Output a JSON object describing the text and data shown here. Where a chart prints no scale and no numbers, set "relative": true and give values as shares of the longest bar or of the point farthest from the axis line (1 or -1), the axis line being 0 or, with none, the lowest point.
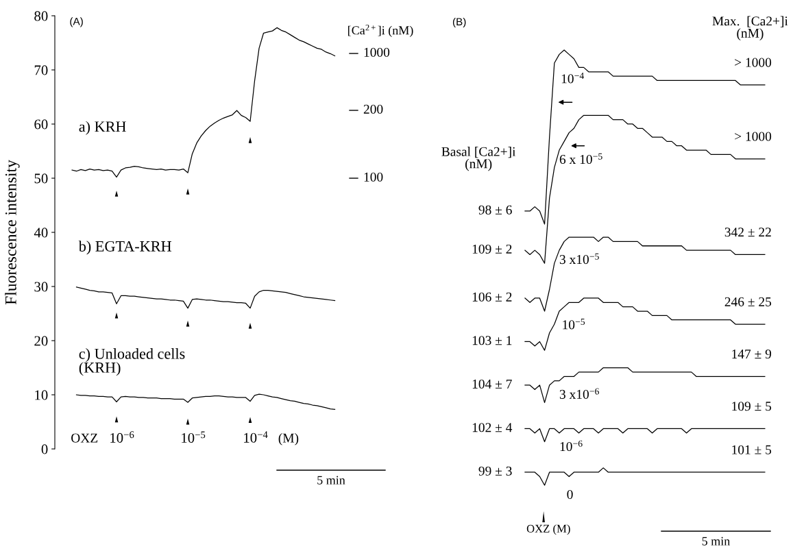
{
  "chart_data": [
    {
      "type": "line",
      "title": "(A)",
      "ylabel": "Fluorescence intensity",
      "categories": [
        null,
        null,
        null,
        null,
        null,
        null,
        null,
        null,
        null,
        null,
        null,
        null,
        null,
        null,
        null,
        null,
        null,
        null,
        null,
        null,
        null,
        null,
        null,
        null,
        null,
        null,
        null,
        null,
        null,
        null,
        null,
        null,
        null,
        null,
        null,
        null,
        null,
        null,
        null,
        null,
        null,
        null,
        null,
        null,
        null,
        null,
        null,
        null,
        null,
        null,
        null,
        null,
        null,
        null,
        null,
        null,
        null,
        null,
        null,
        null
      ],
      "ylim": [
        0,
        80
      ],
      "yticks": [
        0,
        10,
        20,
        30,
        40,
        50,
        60,
        70,
        80
      ],
      "tick_labels": "y",
      "marker": "none",
      "line_style": "solid",
      "series": [
        {
          "name": "a) KRH",
          "color": "#000000",
          "values": [
            51.5,
            51.3,
            51.6,
            51.4,
            51.7,
            51.5,
            51.6,
            51.4,
            51.5,
            51.3,
            50.2,
            51.5,
            51.9,
            52.0,
            52.2,
            52.1,
            51.9,
            51.8,
            51.7,
            51.6,
            51.7,
            51.5,
            51.6,
            51.6,
            51.5,
            51.7,
            51.0,
            54.5,
            56.5,
            57.8,
            58.8,
            59.6,
            60.2,
            60.7,
            61.1,
            61.4,
            61.7,
            62.5,
            61.6,
            61.2,
            60.5,
            68,
            74,
            76.8,
            77,
            77.2,
            77.8,
            77.3,
            77,
            76.5,
            76,
            75.5,
            75.2,
            74.8,
            74.4,
            74,
            73.8,
            73.3,
            73,
            72.6
          ]
        },
        {
          "name": "b) EGTA-KRH",
          "color": "#000000",
          "values": [
            null,
            29.9,
            29.7,
            29.5,
            29.3,
            29.2,
            29.0,
            29.0,
            28.9,
            28.8,
            26.8,
            28.3,
            28.3,
            28.2,
            28.2,
            28.1,
            28.0,
            27.9,
            27.8,
            27.7,
            27.7,
            27.6,
            27.5,
            27.5,
            27.4,
            27.3,
            26.0,
            27.6,
            27.7,
            27.6,
            27.5,
            27.5,
            27.4,
            27.3,
            27.2,
            27.2,
            27.1,
            27.0,
            27.0,
            26.9,
            26.0,
            28.2,
            29.0,
            29.3,
            29.3,
            29.2,
            29.1,
            29.0,
            28.9,
            28.7,
            28.5,
            28.3,
            28.1,
            28.0,
            27.9,
            27.8,
            27.7,
            27.6,
            27.5,
            27.4
          ]
        },
        {
          "name": "c) Unloaded cells\n(KRH)",
          "color": "#000000",
          "values": [
            null,
            10.0,
            9.9,
            9.9,
            9.8,
            9.8,
            9.7,
            9.7,
            9.6,
            9.6,
            8.7,
            9.6,
            9.7,
            9.6,
            9.6,
            9.5,
            9.5,
            9.4,
            9.4,
            9.4,
            9.3,
            9.3,
            9.3,
            9.2,
            9.2,
            9.2,
            8.6,
            9.4,
            9.5,
            9.6,
            9.7,
            9.7,
            9.8,
            9.8,
            9.7,
            9.6,
            9.6,
            9.5,
            9.5,
            9.5,
            8.8,
            9.9,
            10.1,
            10.0,
            9.8,
            9.6,
            9.5,
            9.3,
            9.1,
            8.9,
            8.8,
            8.6,
            8.4,
            8.3,
            8.1,
            8.0,
            7.8,
            7.6,
            7.4,
            7.3
          ]
        }
      ],
      "annotations": [
        "OXZ",
        "10$^{−6}$",
        "10$^{−5}$",
        "10$^{−4}$",
        "(M)",
        "5 min",
        "[Ca$^{2+}$]i (nM)",
        "1000",
        "200",
        "100"
      ]
    },
    {
      "type": "line",
      "title": "(B)",
      "relative": true,
      "tick_labels": false,
      "marker": "none",
      "line_style": "solid",
      "categories": [
        null,
        null,
        null,
        null,
        null,
        null,
        null,
        null,
        null,
        null,
        null,
        null,
        null,
        null,
        null,
        null,
        null,
        null,
        null,
        null,
        null,
        null,
        null,
        null,
        null,
        null,
        null,
        null,
        null,
        null,
        null,
        null,
        null,
        null,
        null,
        null,
        null,
        null,
        null,
        null,
        null,
        null,
        null,
        null,
        null,
        null,
        null,
        null,
        null,
        null
      ],
      "series": [
        {
          "name": "10$^{−4}$",
          "color": "#000000",
          "values": [
            0.63,
            0.63,
            0.64,
            0.63,
            0.6,
            0.8,
            0.97,
            0.99,
            1.0,
            0.99,
            0.98,
            0.96,
            0.96,
            0.95,
            0.95,
            0.95,
            0.95,
            0.95,
            0.94,
            0.94,
            0.94,
            0.94,
            0.94,
            0.94,
            0.94,
            0.94,
            0.94,
            0.93,
            0.93,
            0.93,
            0.93,
            0.93,
            0.93,
            0.93,
            0.93,
            0.93,
            0.93,
            0.93,
            0.93,
            0.93,
            0.93,
            0.93,
            0.93,
            0.93,
            0.92,
            0.92,
            0.92,
            0.92,
            0.92,
            0.92
          ]
        },
        {
          "name": "6 x 10$^{−5}$",
          "color": "#000000",
          "values": [
            0.54,
            0.53,
            0.54,
            0.53,
            0.51,
            0.66,
            0.73,
            0.77,
            0.79,
            0.81,
            0.82,
            0.84,
            0.85,
            0.85,
            0.85,
            0.85,
            0.85,
            0.85,
            0.84,
            0.84,
            0.84,
            0.83,
            0.83,
            0.82,
            0.82,
            0.81,
            0.8,
            0.8,
            0.8,
            0.79,
            0.79,
            0.78,
            0.78,
            0.77,
            0.77,
            0.77,
            0.77,
            0.77,
            0.76,
            0.76,
            0.76,
            0.76,
            0.76,
            0.75,
            0.75,
            0.75,
            0.75,
            0.75,
            0.75,
            0.75
          ]
        },
        {
          "name": "3 x10$^{−5}$",
          "color": "#000000",
          "values": [
            0.43,
            0.42,
            0.43,
            0.43,
            0.4,
            0.45,
            0.51,
            0.54,
            0.56,
            0.57,
            0.57,
            0.57,
            0.57,
            0.57,
            0.57,
            0.56,
            0.57,
            0.57,
            0.56,
            0.56,
            0.56,
            0.56,
            0.56,
            0.56,
            0.55,
            0.55,
            0.55,
            0.55,
            0.55,
            0.55,
            0.55,
            0.55,
            0.55,
            0.54,
            0.54,
            0.54,
            0.54,
            0.54,
            0.54,
            0.54,
            0.54,
            0.54,
            0.54,
            0.53,
            0.53,
            0.53,
            0.53,
            0.53,
            0.53,
            0.53
          ]
        },
        {
          "name": "10$^{−5}$",
          "color": "#000000",
          "values": [
            0.33,
            0.33,
            0.32,
            0.33,
            0.31,
            0.35,
            0.37,
            0.4,
            0.41,
            0.42,
            0.42,
            0.42,
            0.43,
            0.43,
            0.43,
            0.43,
            0.42,
            0.42,
            0.42,
            0.42,
            0.41,
            0.41,
            0.41,
            0.4,
            0.4,
            0.4,
            0.39,
            0.39,
            0.39,
            0.39,
            0.38,
            0.38,
            0.38,
            0.38,
            0.38,
            0.38,
            0.38,
            0.38,
            0.38,
            0.38,
            0.38,
            0.38,
            0.38,
            0.37,
            0.37,
            0.37,
            0.37,
            0.37,
            0.37,
            0.37
          ]
        },
        {
          "name": "3 x10$^{−6}$",
          "color": "#000000",
          "values": [
            0.23,
            0.23,
            0.22,
            0.23,
            0.19,
            0.23,
            0.24,
            0.24,
            0.25,
            0.25,
            0.25,
            0.26,
            0.26,
            0.26,
            0.26,
            0.26,
            0.27,
            0.27,
            0.27,
            0.27,
            0.27,
            0.27,
            0.26,
            0.26,
            0.26,
            0.26,
            0.26,
            0.26,
            0.26,
            0.26,
            0.26,
            0.26,
            0.26,
            0.26,
            0.26,
            0.25,
            0.25,
            0.25,
            0.25,
            0.25,
            0.25,
            0.25,
            0.25,
            0.25,
            0.25,
            0.25,
            0.25,
            0.25,
            0.25,
            0.25
          ]
        },
        {
          "name": "10$^{−6}$",
          "color": "#000000",
          "values": [
            0.13,
            0.13,
            0.12,
            0.13,
            0.1,
            0.13,
            0.13,
            0.12,
            0.13,
            0.13,
            0.13,
            0.12,
            0.13,
            0.13,
            0.13,
            0.12,
            0.13,
            0.13,
            0.13,
            0.13,
            0.12,
            0.13,
            0.13,
            0.13,
            0.13,
            0.13,
            0.12,
            0.13,
            0.13,
            0.13,
            0.13,
            0.13,
            0.13,
            0.12,
            0.13,
            0.13,
            0.13,
            0.13,
            0.13,
            0.13,
            0.13,
            0.13,
            0.13,
            0.13,
            0.13,
            0.13,
            0.13,
            0.13,
            0.13,
            0.13
          ]
        },
        {
          "name": "0",
          "color": "#000000",
          "values": [
            0.03,
            0.03,
            0.03,
            0.02,
            0.0,
            0.03,
            0.03,
            0.03,
            0.03,
            0.02,
            0.03,
            0.03,
            0.03,
            0.03,
            0.03,
            0.03,
            0.04,
            0.03,
            0.03,
            0.03,
            0.03,
            0.03,
            0.03,
            0.03,
            0.03,
            0.03,
            0.03,
            0.03,
            0.03,
            0.03,
            0.03,
            0.03,
            0.03,
            0.03,
            0.03,
            0.03,
            0.03,
            0.03,
            0.03,
            0.03,
            0.03,
            0.03,
            0.03,
            0.03,
            0.03,
            0.03,
            0.03,
            0.03,
            0.03,
            0.03
          ]
        }
      ],
      "annotations": [
        "98 ± 6",
        "109 ± 2",
        "106 ± 2",
        "103 ± 1",
        "104 ± 7",
        "102 ± 4",
        "99 ± 3",
        "> 1000",
        "> 1000",
        "342 ± 22",
        "246 ± 25",
        "147 ± 9",
        "109 ± 5",
        "101 ± 5",
        "Basal [Ca2+]i\n(nM)",
        "Max.  [Ca2+]i\n(nM)",
        "OXZ (M)",
        "5 min"
      ]
    }
  ]
}
